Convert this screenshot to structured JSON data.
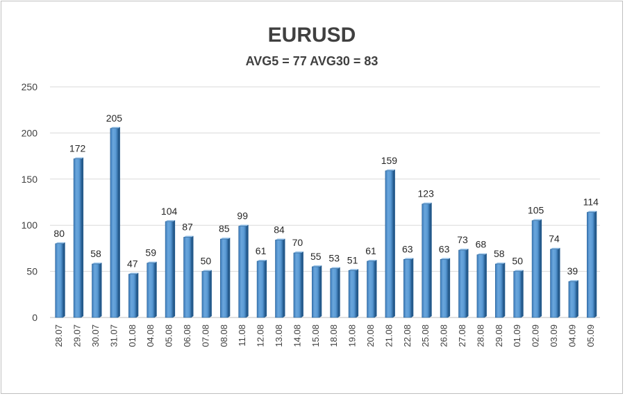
{
  "chart_data": {
    "type": "bar",
    "title": "EURUSD",
    "subtitle": "AVG5 = 77 AVG30 = 83",
    "xlabel": "",
    "ylabel": "",
    "ylim": [
      0,
      250
    ],
    "yticks": [
      0,
      50,
      100,
      150,
      200,
      250
    ],
    "grid": true,
    "bar_color": "#5b9bd5",
    "categories": [
      "28.07",
      "29.07",
      "30.07",
      "31.07",
      "01.08",
      "04.08",
      "05.08",
      "06.08",
      "07.08",
      "08.08",
      "11.08",
      "12.08",
      "13.08",
      "14.08",
      "15.08",
      "18.08",
      "19.08",
      "20.08",
      "21.08",
      "22.08",
      "25.08",
      "26.08",
      "27.08",
      "28.08",
      "29.08",
      "01.09",
      "02.09",
      "03.09",
      "04.09",
      "05.09"
    ],
    "values": [
      80,
      172,
      58,
      205,
      47,
      59,
      104,
      87,
      50,
      85,
      99,
      61,
      84,
      70,
      55,
      53,
      51,
      61,
      159,
      63,
      123,
      63,
      73,
      68,
      58,
      50,
      105,
      74,
      39,
      114
    ]
  }
}
